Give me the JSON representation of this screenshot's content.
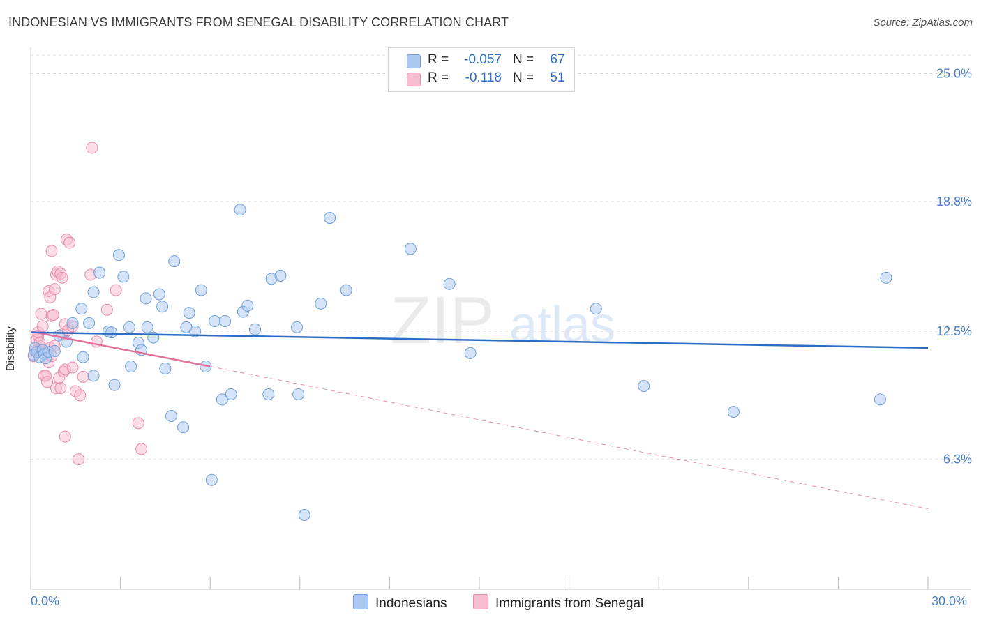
{
  "title": "INDONESIAN VS IMMIGRANTS FROM SENEGAL DISABILITY CORRELATION CHART",
  "source": "Source: ZipAtlas.com",
  "watermark": {
    "zip": "ZIP",
    "atlas": "atlas"
  },
  "legend": {
    "r_label": "R =",
    "n_label": "N =",
    "rows": [
      {
        "r": "-0.057",
        "n": "67"
      },
      {
        "r": "-0.118",
        "n": "51"
      }
    ]
  },
  "bottom_legend": [
    "Indonesians",
    "Immigrants from Senegal"
  ],
  "colors": {
    "blue_fill": "#aac8f0",
    "blue_stroke": "#6e9ed8",
    "blue_line": "#2b6cc4",
    "pink_fill": "#f6bcd0",
    "pink_stroke": "#e88aab",
    "pink_line": "#e0709a",
    "axis_text": "#4a7fc8",
    "grid": "#dddddd"
  },
  "chart_data": {
    "type": "scatter",
    "title": "INDONESIAN VS IMMIGRANTS FROM SENEGAL DISABILITY CORRELATION CHART",
    "xlabel": "",
    "ylabel": "Disability",
    "xlim": [
      0,
      30
    ],
    "ylim": [
      0,
      26.2
    ],
    "x_tick_labels": [
      "0.0%",
      "30.0%"
    ],
    "y_ticks": [
      {
        "value": 6.3,
        "label": "6.3%"
      },
      {
        "value": 12.5,
        "label": "12.5%"
      },
      {
        "value": 18.8,
        "label": "18.8%"
      },
      {
        "value": 25.0,
        "label": "25.0%"
      }
    ],
    "series": [
      {
        "name": "Indonesians",
        "r": -0.057,
        "n": 67,
        "trend": {
          "x0": 0.0,
          "y0": 12.45,
          "x1": 30.0,
          "y1": 11.7
        },
        "points": [
          [
            0.1,
            11.35
          ],
          [
            0.15,
            11.7
          ],
          [
            0.2,
            11.5
          ],
          [
            0.3,
            11.25
          ],
          [
            0.4,
            11.6
          ],
          [
            0.45,
            11.4
          ],
          [
            0.5,
            11.2
          ],
          [
            0.6,
            11.5
          ],
          [
            0.8,
            11.55
          ],
          [
            0.95,
            12.3
          ],
          [
            1.2,
            12.0
          ],
          [
            1.4,
            12.9
          ],
          [
            1.75,
            11.25
          ],
          [
            1.7,
            13.6
          ],
          [
            1.95,
            12.9
          ],
          [
            2.1,
            10.35
          ],
          [
            2.1,
            14.4
          ],
          [
            2.3,
            15.35
          ],
          [
            2.6,
            12.5
          ],
          [
            2.7,
            12.45
          ],
          [
            2.8,
            9.9
          ],
          [
            2.95,
            16.2
          ],
          [
            3.1,
            15.15
          ],
          [
            3.35,
            10.8
          ],
          [
            3.3,
            12.7
          ],
          [
            3.6,
            11.95
          ],
          [
            3.7,
            11.6
          ],
          [
            3.85,
            14.1
          ],
          [
            3.9,
            12.7
          ],
          [
            4.1,
            12.2
          ],
          [
            4.3,
            14.3
          ],
          [
            4.4,
            13.7
          ],
          [
            4.5,
            10.7
          ],
          [
            4.7,
            8.4
          ],
          [
            4.8,
            15.9
          ],
          [
            5.1,
            7.85
          ],
          [
            5.2,
            12.7
          ],
          [
            5.3,
            13.4
          ],
          [
            5.5,
            12.5
          ],
          [
            5.7,
            14.5
          ],
          [
            5.85,
            10.8
          ],
          [
            6.05,
            5.3
          ],
          [
            6.15,
            13.0
          ],
          [
            6.4,
            9.2
          ],
          [
            6.5,
            13.0
          ],
          [
            6.7,
            9.45
          ],
          [
            7.0,
            18.4
          ],
          [
            7.1,
            13.45
          ],
          [
            7.25,
            13.75
          ],
          [
            7.5,
            12.6
          ],
          [
            7.95,
            9.45
          ],
          [
            8.05,
            15.05
          ],
          [
            8.35,
            15.2
          ],
          [
            8.9,
            12.7
          ],
          [
            8.95,
            9.45
          ],
          [
            9.15,
            3.6
          ],
          [
            9.7,
            13.85
          ],
          [
            10.0,
            18.0
          ],
          [
            10.55,
            14.5
          ],
          [
            12.7,
            16.5
          ],
          [
            14.0,
            14.8
          ],
          [
            14.7,
            11.45
          ],
          [
            18.9,
            13.6
          ],
          [
            20.5,
            9.85
          ],
          [
            23.5,
            8.6
          ],
          [
            28.4,
            9.2
          ],
          [
            28.6,
            15.1
          ]
        ]
      },
      {
        "name": "Immigrants from Senegal",
        "r": -0.118,
        "n": 51,
        "trend": {
          "x0": 0.0,
          "y0": 12.5,
          "x1": 6.0,
          "y1": 10.8,
          "dashed_x1": 30.0,
          "dashed_y1": 3.9
        },
        "points": [
          [
            0.1,
            11.3
          ],
          [
            0.15,
            11.55
          ],
          [
            0.2,
            12.1
          ],
          [
            0.25,
            12.3
          ],
          [
            0.25,
            12.45
          ],
          [
            0.3,
            11.8
          ],
          [
            0.3,
            11.95
          ],
          [
            0.35,
            13.35
          ],
          [
            0.4,
            12.75
          ],
          [
            0.4,
            11.6
          ],
          [
            0.45,
            10.35
          ],
          [
            0.5,
            10.35
          ],
          [
            0.55,
            10.05
          ],
          [
            0.6,
            11.0
          ],
          [
            0.6,
            14.45
          ],
          [
            0.65,
            14.15
          ],
          [
            0.65,
            11.7
          ],
          [
            0.7,
            11.3
          ],
          [
            0.7,
            16.4
          ],
          [
            0.7,
            13.25
          ],
          [
            0.75,
            13.3
          ],
          [
            0.8,
            11.8
          ],
          [
            0.8,
            14.55
          ],
          [
            0.85,
            9.75
          ],
          [
            0.85,
            15.25
          ],
          [
            0.9,
            15.4
          ],
          [
            0.95,
            10.25
          ],
          [
            1.0,
            9.75
          ],
          [
            1.05,
            12.35
          ],
          [
            1.0,
            15.3
          ],
          [
            1.05,
            15.1
          ],
          [
            1.1,
            10.55
          ],
          [
            1.15,
            12.85
          ],
          [
            1.15,
            10.65
          ],
          [
            1.15,
            7.4
          ],
          [
            1.2,
            16.95
          ],
          [
            1.25,
            12.55
          ],
          [
            1.3,
            16.8
          ],
          [
            1.4,
            10.75
          ],
          [
            1.4,
            12.75
          ],
          [
            1.5,
            9.6
          ],
          [
            1.6,
            6.3
          ],
          [
            1.65,
            9.4
          ],
          [
            1.75,
            10.3
          ],
          [
            2.0,
            15.25
          ],
          [
            2.05,
            21.4
          ],
          [
            2.2,
            12.0
          ],
          [
            2.55,
            13.55
          ],
          [
            2.85,
            14.5
          ],
          [
            3.6,
            8.05
          ],
          [
            3.7,
            6.8
          ]
        ]
      }
    ]
  }
}
